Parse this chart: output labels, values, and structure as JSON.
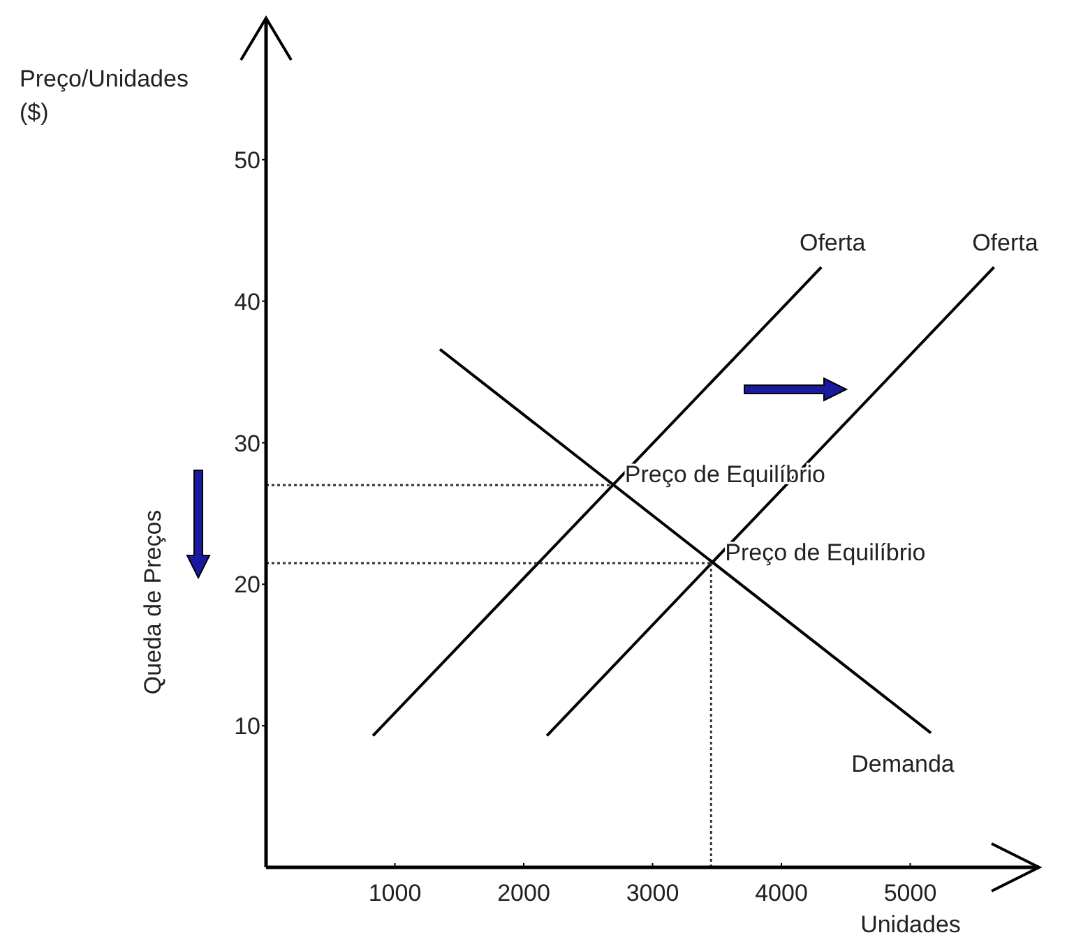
{
  "chart_data": {
    "type": "line",
    "xlabel": "Unidades",
    "ylabel": "Preço/Unidades ($)",
    "xlim": [
      0,
      6000
    ],
    "ylim": [
      0,
      60
    ],
    "xticks": [
      1000,
      2000,
      3000,
      4000,
      5000
    ],
    "yticks": [
      10,
      20,
      30,
      40,
      50
    ],
    "grid": false,
    "marker": "none",
    "series": [
      {
        "name": "Oferta",
        "color": "#000000",
        "x": [
          830,
          4310
        ],
        "values": [
          9.3,
          42.4
        ]
      },
      {
        "name": "Oferta",
        "color": "#000000",
        "x": [
          2180,
          5650
        ],
        "values": [
          9.3,
          42.4
        ]
      },
      {
        "name": "Demanda",
        "color": "#000000",
        "x": [
          1350,
          5160
        ],
        "values": [
          36.6,
          9.5
        ]
      },
      {
        "color": "#333333",
        "x": [
          0,
          2676
        ],
        "values": [
          27,
          27
        ],
        "line_style": "dotted"
      },
      {
        "color": "#333333",
        "x": [
          0,
          3454
        ],
        "values": [
          21.5,
          21.5
        ],
        "line_style": "dotted"
      },
      {
        "color": "#333333",
        "x": [
          3454,
          3454
        ],
        "values": [
          21.5,
          0
        ],
        "line_style": "dotted"
      }
    ],
    "annotations": [
      {
        "text": "Preço de Equilíbrio",
        "x": 2676,
        "y": 27
      },
      {
        "text": "Preço de Equilíbrio",
        "x": 3454,
        "y": 21.5
      },
      "Queda de Preços"
    ]
  }
}
